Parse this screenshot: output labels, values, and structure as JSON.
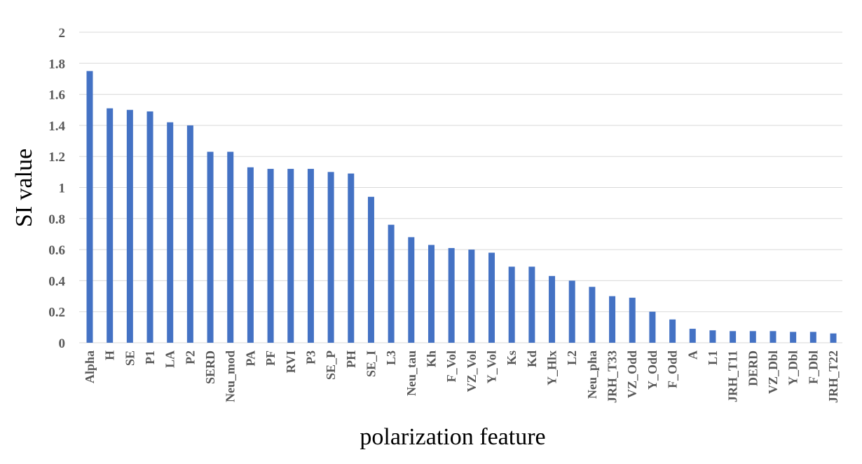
{
  "chart_data": {
    "type": "bar",
    "title": "",
    "xlabel": "polarization feature",
    "ylabel": "SI value",
    "ylim": [
      0,
      2
    ],
    "yticks": [
      "0",
      "0.2",
      "0.4",
      "0.6",
      "0.8",
      "1",
      "1.2",
      "1.4",
      "1.6",
      "1.8",
      "2"
    ],
    "grid": true,
    "bar_color": "#4472C4",
    "categories": [
      "Alpha",
      "H",
      "SE",
      "P1",
      "LA",
      "P2",
      "SERD",
      "Neu_mod",
      "PA",
      "PF",
      "RVI",
      "P3",
      "SE_P",
      "PH",
      "SE_I",
      "L3",
      "Neu_tau",
      "Kh",
      "F_Vol",
      "VZ_Vol",
      "Y_Vol",
      "Ks",
      "Kd",
      "Y_Hlx",
      "L2",
      "Neu_pha",
      "JRH_T33",
      "VZ_Odd",
      "Y_Odd",
      "F_Odd",
      "A",
      "L1",
      "JRH_T11",
      "DERD",
      "VZ_Dbl",
      "Y_Dbl",
      "F_Dbl",
      "JRH_T22"
    ],
    "values": [
      1.75,
      1.51,
      1.5,
      1.49,
      1.42,
      1.4,
      1.23,
      1.23,
      1.13,
      1.12,
      1.12,
      1.12,
      1.1,
      1.09,
      0.94,
      0.76,
      0.68,
      0.63,
      0.61,
      0.6,
      0.58,
      0.49,
      0.49,
      0.43,
      0.4,
      0.36,
      0.3,
      0.29,
      0.2,
      0.15,
      0.09,
      0.08,
      0.075,
      0.075,
      0.075,
      0.07,
      0.07,
      0.06
    ]
  }
}
